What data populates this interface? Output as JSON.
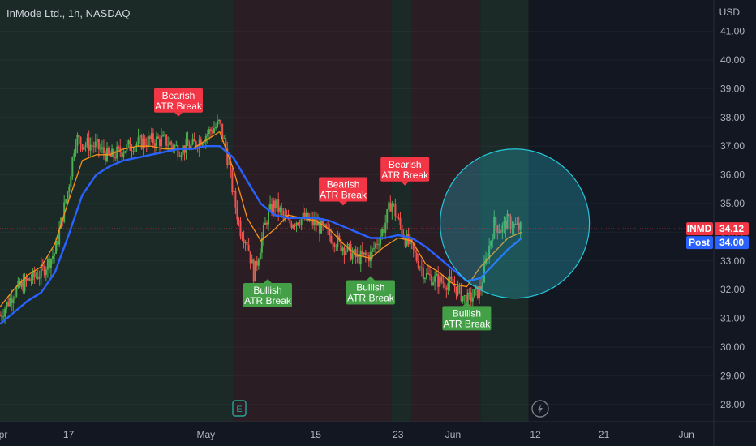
{
  "title": "InMode Ltd., 1h, NASDAQ",
  "currency": "USD",
  "colors": {
    "background": "#131722",
    "green_zone": "#1b2a27",
    "red_zone": "#2a1d24",
    "future_zone": "#131722",
    "bull_candle": "#4caf50",
    "bear_candle": "#ef5350",
    "fast_ma": "#f7931a",
    "slow_ma": "#2962ff",
    "bearish_label": "#f23645",
    "bullish_label": "#43a047",
    "circle": "#26c6da"
  },
  "chart_data": {
    "type": "line",
    "y_ticks": [
      "41.00",
      "40.00",
      "39.00",
      "38.00",
      "37.00",
      "36.00",
      "35.00",
      "34.00",
      "33.00",
      "32.00",
      "31.00",
      "30.00",
      "29.00",
      "28.00"
    ],
    "ylim": [
      27.4,
      41.3
    ],
    "x_ticks": [
      {
        "label": "Apr",
        "x": 0
      },
      {
        "label": "17",
        "x": 5
      },
      {
        "label": "May",
        "x": 15
      },
      {
        "label": "15",
        "x": 23
      },
      {
        "label": "23",
        "x": 29
      },
      {
        "label": "Jun",
        "x": 33
      },
      {
        "label": "12",
        "x": 39
      },
      {
        "label": "21",
        "x": 44
      },
      {
        "label": "Jun",
        "x": 50
      }
    ],
    "xlim": [
      0,
      52
    ],
    "zones": [
      {
        "from": 0,
        "to": 17,
        "trend": "bull"
      },
      {
        "from": 17,
        "to": 28.5,
        "trend": "bear"
      },
      {
        "from": 28.5,
        "to": 30,
        "trend": "bull"
      },
      {
        "from": 30,
        "to": 35,
        "trend": "bear"
      },
      {
        "from": 35,
        "to": 38.5,
        "trend": "bull"
      }
    ],
    "series": [
      {
        "name": "Price",
        "x": [
          0,
          1,
          2,
          3,
          4,
          5,
          5.5,
          6,
          7,
          8,
          9,
          10,
          11,
          12,
          13,
          14,
          15,
          16,
          16.5,
          17,
          17.5,
          18,
          18.5,
          19,
          19.5,
          20,
          21,
          22,
          23,
          24,
          25,
          26,
          27,
          28,
          28.5,
          29,
          29.5,
          30,
          31,
          32,
          33,
          34,
          35,
          35.5,
          36,
          36.5,
          37,
          37.5,
          38
        ],
        "values": [
          31.1,
          31.9,
          32.3,
          32.6,
          33.3,
          35.6,
          37.3,
          37.1,
          37.0,
          36.6,
          36.9,
          37.1,
          37.2,
          37.2,
          36.9,
          37.0,
          37.4,
          37.8,
          36.8,
          35.3,
          34.1,
          33.7,
          32.5,
          33.6,
          34.6,
          35.0,
          34.3,
          34.5,
          34.3,
          33.9,
          33.5,
          33.1,
          33.2,
          34.2,
          35.1,
          34.4,
          33.8,
          33.4,
          32.5,
          32.3,
          32.2,
          31.6,
          32.0,
          33.2,
          34.3,
          34.1,
          34.4,
          34.2,
          34.1
        ]
      },
      {
        "name": "Fast MA",
        "x": [
          0,
          1,
          2,
          3,
          4,
          5,
          6,
          7,
          8,
          9,
          10,
          11,
          12,
          13,
          14,
          15,
          16,
          17,
          18,
          19,
          20,
          21,
          22,
          23,
          24,
          25,
          26,
          27,
          28,
          29,
          30,
          31,
          32,
          33,
          34,
          35,
          36,
          37,
          38
        ],
        "values": [
          31.4,
          32.0,
          32.5,
          32.8,
          33.6,
          35.1,
          36.5,
          36.7,
          36.7,
          36.9,
          37.0,
          37.0,
          36.9,
          36.9,
          36.9,
          37.2,
          37.5,
          36.2,
          34.5,
          33.7,
          34.1,
          34.6,
          34.5,
          34.4,
          34.1,
          33.6,
          33.2,
          33.1,
          33.5,
          33.8,
          33.7,
          32.9,
          32.6,
          32.2,
          32.1,
          32.8,
          33.3,
          33.8,
          34.0
        ]
      },
      {
        "name": "Slow MA",
        "x": [
          0,
          1,
          2,
          3,
          4,
          5,
          6,
          7,
          8,
          9,
          10,
          11,
          12,
          13,
          14,
          15,
          16,
          17,
          18,
          19,
          20,
          21,
          22,
          23,
          24,
          25,
          26,
          27,
          28,
          29,
          30,
          31,
          32,
          33,
          34,
          35,
          36,
          37,
          38
        ],
        "values": [
          30.8,
          31.2,
          31.6,
          31.9,
          32.6,
          33.9,
          35.3,
          36.0,
          36.3,
          36.5,
          36.6,
          36.7,
          36.8,
          36.9,
          36.9,
          37.0,
          37.0,
          36.6,
          35.8,
          35.0,
          34.6,
          34.5,
          34.5,
          34.5,
          34.4,
          34.2,
          34.0,
          33.8,
          33.8,
          33.9,
          33.8,
          33.5,
          33.1,
          32.7,
          32.3,
          32.4,
          32.9,
          33.4,
          33.8
        ]
      }
    ],
    "signals": [
      {
        "type": "bearish",
        "line1": "Bearish",
        "line2": "ATR Break",
        "x": 13,
        "y": 38.0
      },
      {
        "type": "bullish",
        "line1": "Bullish",
        "line2": "ATR Break",
        "x": 19.5,
        "y": 32.4
      },
      {
        "type": "bearish",
        "line1": "Bearish",
        "line2": "ATR Break",
        "x": 25,
        "y": 34.9
      },
      {
        "type": "bullish",
        "line1": "Bullish",
        "line2": "ATR Break",
        "x": 27,
        "y": 32.5
      },
      {
        "type": "bearish",
        "line1": "Bearish",
        "line2": "ATR Break",
        "x": 29.5,
        "y": 35.6
      },
      {
        "type": "bullish",
        "line1": "Bullish",
        "line2": "ATR Break",
        "x": 34,
        "y": 31.6
      }
    ],
    "price_tags": [
      {
        "label": "INMD",
        "value": "34.12",
        "price": 34.12,
        "color": "#f23645"
      },
      {
        "label": "Post",
        "value": "34.00",
        "price": 34.0,
        "color": "#2962ff"
      }
    ],
    "highlight_circle": {
      "x": 37.5,
      "y": 34.3,
      "radius_price": 2.6
    }
  }
}
